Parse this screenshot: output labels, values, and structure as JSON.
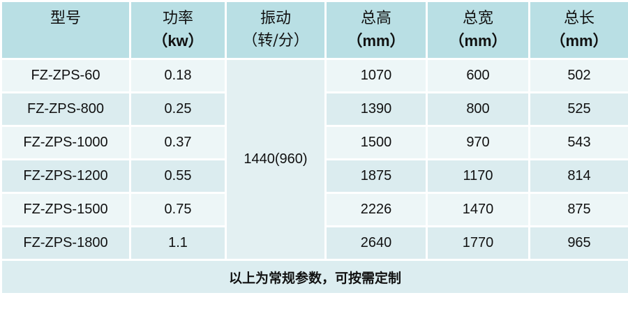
{
  "headers": [
    {
      "line1": "型号",
      "line2": ""
    },
    {
      "line1": "功率",
      "line2": "（kw）"
    },
    {
      "line1": "振动",
      "line2": "（转/分）"
    },
    {
      "line1": "总高",
      "line2": "（mm）"
    },
    {
      "line1": "总宽",
      "line2": "（mm）"
    },
    {
      "line1": "总长",
      "line2": "（mm）"
    }
  ],
  "vibration": "1440(960)",
  "rows": [
    {
      "model": "FZ-ZPS-60",
      "power": "0.18",
      "height": "1070",
      "width": "600",
      "length": "502"
    },
    {
      "model": "FZ-ZPS-800",
      "power": "0.25",
      "height": "1390",
      "width": "800",
      "length": "525"
    },
    {
      "model": "FZ-ZPS-1000",
      "power": "0.37",
      "height": "1500",
      "width": "970",
      "length": "543"
    },
    {
      "model": "FZ-ZPS-1200",
      "power": "0.55",
      "height": "1875",
      "width": "1170",
      "length": "814"
    },
    {
      "model": "FZ-ZPS-1500",
      "power": "0.75",
      "height": "2226",
      "width": "1470",
      "length": "875"
    },
    {
      "model": "FZ-ZPS-1800",
      "power": "1.1",
      "height": "2640",
      "width": "1770",
      "length": "965"
    }
  ],
  "footer": "以上为常规参数，可按需定制"
}
